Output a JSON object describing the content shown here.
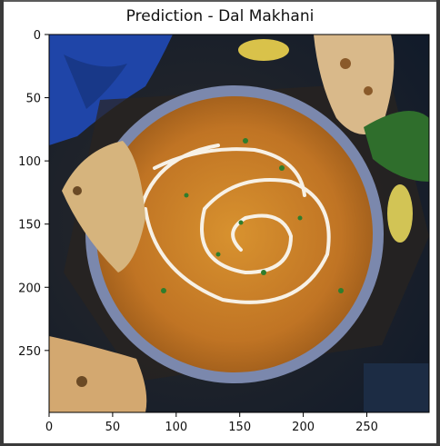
{
  "figure": {
    "title": "Prediction - Dal Makhani"
  },
  "chart_data": {
    "type": "image",
    "title": "Prediction - Dal Makhani",
    "xlabel": "",
    "ylabel": "",
    "xlim": [
      0,
      299
    ],
    "ylim": [
      299,
      0
    ],
    "x_ticks": [
      0,
      50,
      100,
      150,
      200,
      250
    ],
    "y_ticks": [
      0,
      50,
      100,
      150,
      200,
      250
    ],
    "grid": false
  },
  "image_content": {
    "description_icon": "food-photo-dal-makhani",
    "colors": {
      "background_dark": "#13233a",
      "blue_cloth": "#1f45a8",
      "bowl_rim": "#7b88ad",
      "curry": "#c57a26",
      "cream": "#f7f1e6",
      "naan": "#d6b47d",
      "herbs": "#2f7d2c"
    }
  }
}
